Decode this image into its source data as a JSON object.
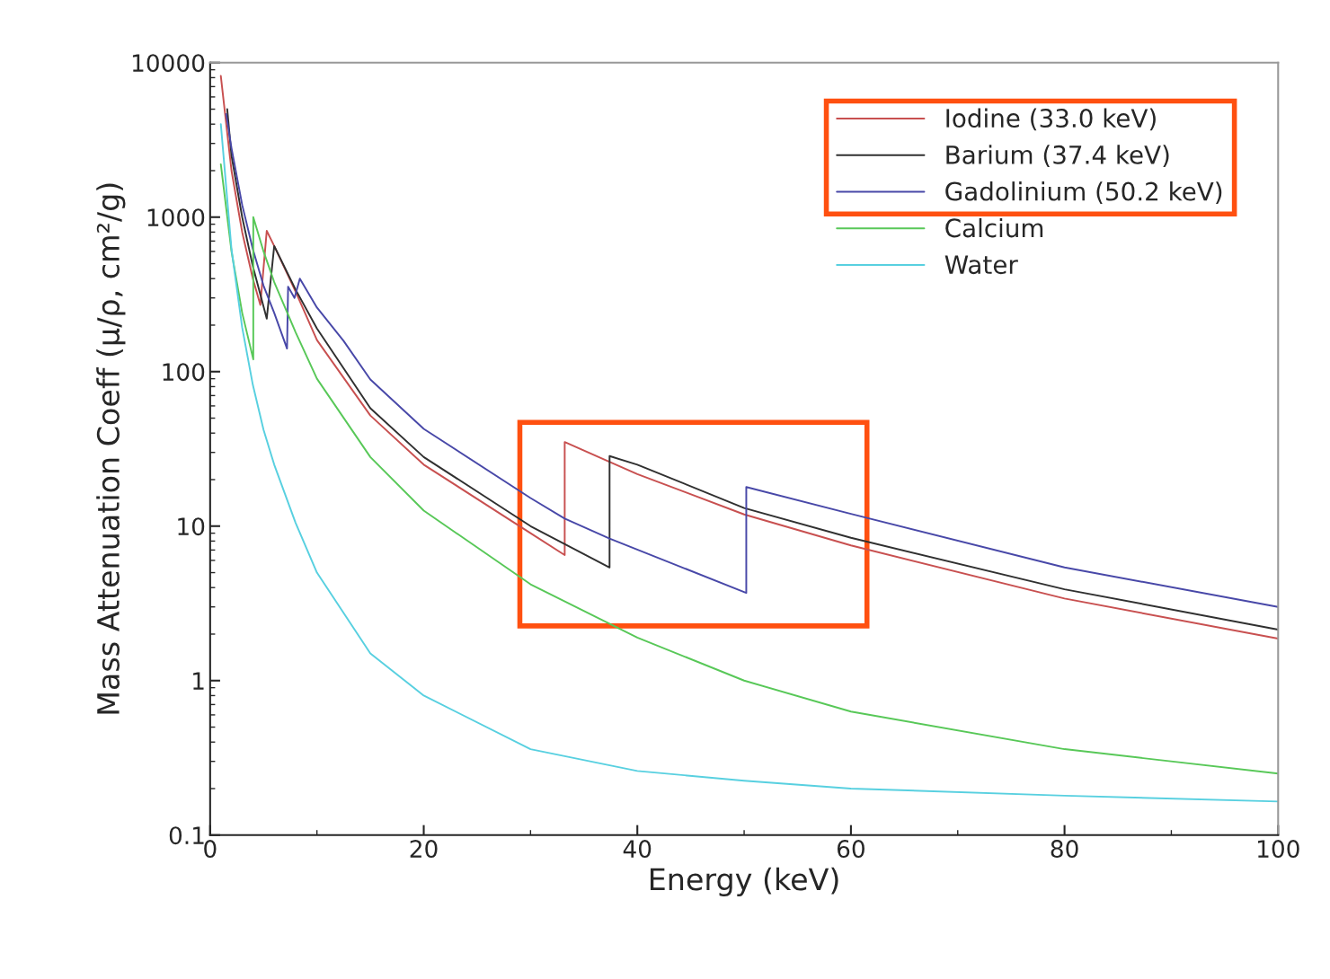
{
  "chart_data": {
    "type": "line",
    "xlabel": "Energy (keV)",
    "ylabel": "Mass Attenuation Coeff (μ/ρ, cm²/g)",
    "xlim": [
      0,
      100
    ],
    "xticks": [
      0,
      20,
      40,
      60,
      80,
      100
    ],
    "ylim": [
      0.1,
      10000
    ],
    "yticks": [
      0.1,
      1,
      10,
      100,
      1000,
      10000
    ],
    "log": "y",
    "grid": false,
    "legend": "top right",
    "marker": "none",
    "line_style": "solid",
    "series": [
      {
        "name": "Iodine (33.0 keV)",
        "color": "#c85050",
        "x": [
          1,
          2,
          3,
          4,
          4.7,
          5.3,
          6,
          8,
          10,
          15,
          20,
          30,
          33.2,
          33.2,
          40,
          50,
          60,
          80,
          100
        ],
        "values": [
          8200,
          2000,
          800,
          400,
          270,
          815,
          650,
          330,
          160,
          52,
          25,
          9.0,
          6.5,
          35,
          21.7,
          11.9,
          7.5,
          3.4,
          1.87
        ]
      },
      {
        "name": "Barium (37.4 keV)",
        "color": "#303030",
        "x": [
          1.6,
          2,
          3,
          4,
          5.3,
          6,
          8,
          10,
          15,
          20,
          30,
          37.4,
          37.4,
          40,
          50,
          60,
          80,
          100
        ],
        "values": [
          5000,
          2500,
          1000,
          480,
          220,
          650,
          340,
          190,
          58,
          28,
          10,
          5.4,
          28.4,
          25,
          13.1,
          8.4,
          3.9,
          2.14
        ]
      },
      {
        "name": "Gadolinium (50.2 keV)",
        "color": "#4848a8",
        "x": [
          1.5,
          2,
          3,
          4,
          5,
          6,
          7.2,
          7.3,
          7.9,
          8.4,
          10,
          12.5,
          15,
          20,
          30,
          33.2,
          37.4,
          50.2,
          50.2,
          60,
          80,
          100
        ],
        "values": [
          4650,
          2800,
          1200,
          620,
          360,
          240,
          141,
          355,
          300,
          400,
          260,
          158,
          89,
          42.6,
          15.2,
          11.2,
          8.3,
          3.7,
          17.9,
          12,
          5.4,
          3.0
        ]
      },
      {
        "name": "Calcium",
        "color": "#58c858",
        "x": [
          1,
          2,
          3,
          4.04,
          4.04,
          5,
          6,
          8,
          10,
          15,
          20,
          30,
          40,
          50,
          60,
          80,
          100
        ],
        "values": [
          2200,
          600,
          240,
          120,
          1000,
          600,
          380,
          180,
          90,
          28,
          12.6,
          4.2,
          1.9,
          1.0,
          0.63,
          0.36,
          0.25
        ]
      },
      {
        "name": "Water",
        "color": "#58d0e0",
        "x": [
          1,
          2,
          3,
          4,
          5,
          6,
          8,
          10,
          15,
          20,
          30,
          40,
          50,
          60,
          80,
          100
        ],
        "values": [
          4000,
          620,
          193,
          82,
          42,
          25,
          10.5,
          5.0,
          1.5,
          0.8,
          0.36,
          0.26,
          0.225,
          0.2,
          0.18,
          0.165
        ]
      }
    ]
  }
}
